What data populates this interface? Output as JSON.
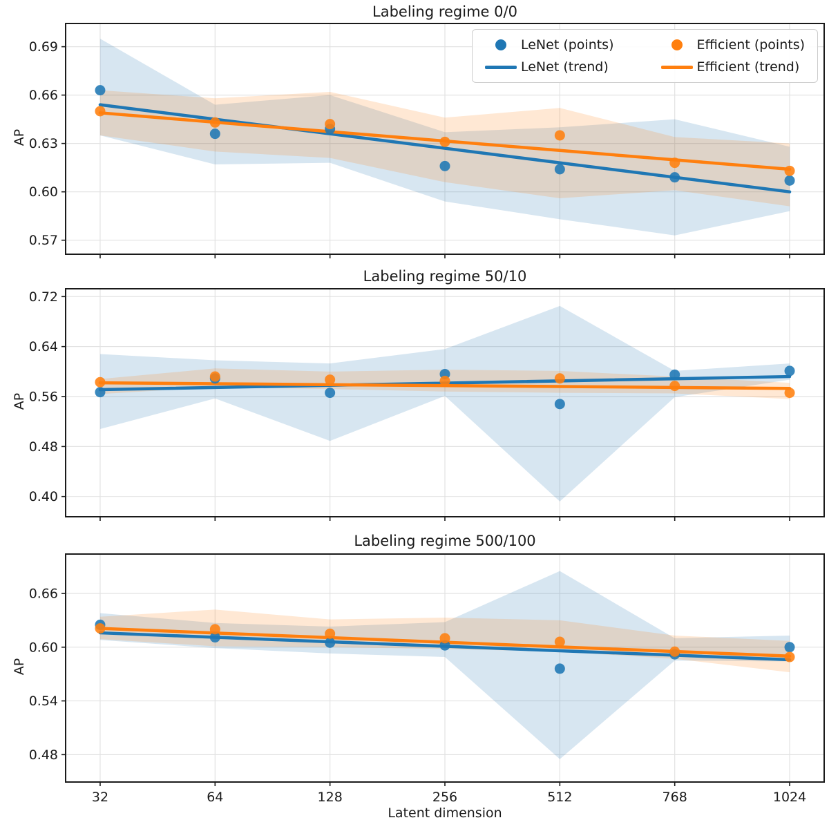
{
  "figure": {
    "xlabel": "Latent dimension",
    "ylabel": "AP",
    "x_tick_labels": [
      "32",
      "64",
      "128",
      "256",
      "512",
      "768",
      "1024"
    ],
    "background_color": "#ffffff",
    "grid_color": "#e2e2e2",
    "spine_color": "#1a1a1a",
    "text_color": "#1a1a1a",
    "legend": {
      "position": "upper right",
      "items": [
        {
          "label": "LeNet (points)",
          "type": "point",
          "color": "#1f77b4"
        },
        {
          "label": "Efficient (points)",
          "type": "point",
          "color": "#ff7f0e"
        },
        {
          "label": "LeNet (trend)",
          "type": "line",
          "color": "#1f77b4"
        },
        {
          "label": "Efficient (trend)",
          "type": "line",
          "color": "#ff7f0e"
        }
      ]
    }
  },
  "chart_data": [
    {
      "type": "scatter",
      "title": "Labeling regime 0/0",
      "ylabel": "AP",
      "xlabel": "",
      "categories": [
        32,
        64,
        128,
        256,
        512,
        768,
        1024
      ],
      "ylim": [
        0.5613,
        0.7044
      ],
      "yticks": [
        0.57,
        0.6,
        0.63,
        0.66,
        0.69
      ],
      "grid": true,
      "series": [
        {
          "name": "LeNet",
          "color": "#1f77b4",
          "points": [
            0.663,
            0.636,
            0.639,
            0.616,
            0.614,
            0.609,
            0.607
          ],
          "trend": [
            0.654,
            0.6
          ],
          "band_upper": [
            0.695,
            0.654,
            0.66,
            0.637,
            0.64,
            0.645,
            0.628
          ],
          "band_lower": [
            0.635,
            0.617,
            0.618,
            0.594,
            0.583,
            0.573,
            0.588
          ]
        },
        {
          "name": "Efficient",
          "color": "#ff7f0e",
          "points": [
            0.65,
            0.643,
            0.642,
            0.631,
            0.635,
            0.618,
            0.613
          ],
          "trend": [
            0.649,
            0.614
          ],
          "band_upper": [
            0.663,
            0.658,
            0.662,
            0.646,
            0.652,
            0.634,
            0.63
          ],
          "band_lower": [
            0.635,
            0.625,
            0.621,
            0.606,
            0.596,
            0.601,
            0.591
          ]
        }
      ]
    },
    {
      "type": "scatter",
      "title": "Labeling regime 50/10",
      "ylabel": "AP",
      "xlabel": "",
      "categories": [
        32,
        64,
        128,
        256,
        512,
        768,
        1024
      ],
      "ylim": [
        0.3676,
        0.7325
      ],
      "yticks": [
        0.4,
        0.48,
        0.56,
        0.64,
        0.72
      ],
      "grid": true,
      "series": [
        {
          "name": "LeNet",
          "color": "#1f77b4",
          "points": [
            0.567,
            0.589,
            0.566,
            0.596,
            0.548,
            0.595,
            0.601
          ],
          "trend": [
            0.571,
            0.592
          ],
          "band_upper": [
            0.628,
            0.618,
            0.613,
            0.636,
            0.705,
            0.601,
            0.613
          ],
          "band_lower": [
            0.508,
            0.557,
            0.489,
            0.561,
            0.392,
            0.559,
            0.587
          ]
        },
        {
          "name": "Efficient",
          "color": "#ff7f0e",
          "points": [
            0.583,
            0.592,
            0.587,
            0.585,
            0.589,
            0.577,
            0.566
          ],
          "trend": [
            0.582,
            0.573
          ],
          "band_upper": [
            0.588,
            0.605,
            0.6,
            0.603,
            0.601,
            0.592,
            0.582
          ],
          "band_lower": [
            0.564,
            0.575,
            0.572,
            0.568,
            0.566,
            0.565,
            0.556
          ]
        }
      ]
    },
    {
      "type": "scatter",
      "title": "Labeling regime 500/100",
      "ylabel": "AP",
      "xlabel": "Latent dimension",
      "categories": [
        32,
        64,
        128,
        256,
        512,
        768,
        1024
      ],
      "ylim": [
        0.4494,
        0.704
      ],
      "yticks": [
        0.48,
        0.54,
        0.6,
        0.66
      ],
      "grid": true,
      "series": [
        {
          "name": "LeNet",
          "color": "#1f77b4",
          "points": [
            0.625,
            0.611,
            0.605,
            0.602,
            0.576,
            0.592,
            0.6
          ],
          "trend": [
            0.616,
            0.586
          ],
          "band_upper": [
            0.638,
            0.627,
            0.623,
            0.628,
            0.685,
            0.61,
            0.613
          ],
          "band_lower": [
            0.608,
            0.599,
            0.593,
            0.589,
            0.475,
            0.585,
            0.584
          ]
        },
        {
          "name": "Efficient",
          "color": "#ff7f0e",
          "points": [
            0.621,
            0.62,
            0.615,
            0.61,
            0.606,
            0.595,
            0.589
          ],
          "trend": [
            0.621,
            0.59
          ],
          "band_upper": [
            0.634,
            0.642,
            0.631,
            0.633,
            0.63,
            0.613,
            0.607
          ],
          "band_lower": [
            0.609,
            0.601,
            0.6,
            0.598,
            0.595,
            0.587,
            0.572
          ]
        }
      ]
    }
  ]
}
